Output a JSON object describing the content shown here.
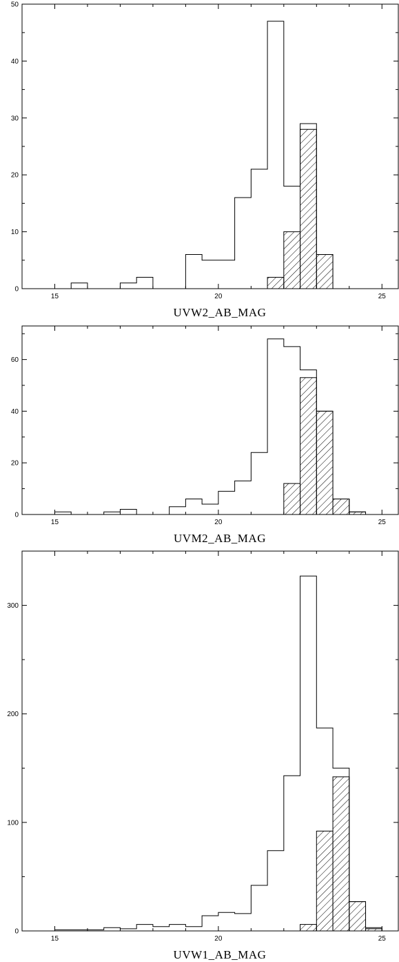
{
  "chart_data": [
    {
      "type": "bar",
      "xlabel": "UVW2_AB_MAG",
      "xlim": [
        14,
        25.5
      ],
      "ylim": [
        0,
        50
      ],
      "x_ticks": [
        15,
        20,
        25
      ],
      "x_tick_labels": [
        "15",
        "20",
        "25"
      ],
      "y_ticks": [
        0,
        10,
        20,
        30,
        40,
        50
      ],
      "y_tick_labels": [
        "0",
        "10",
        "20",
        "30",
        "40",
        "50"
      ],
      "bin_width": 0.5,
      "series": [
        {
          "style": "outline",
          "bins": [
            {
              "x": 15.5,
              "value": 1
            },
            {
              "x": 16,
              "value": 0
            },
            {
              "x": 16.5,
              "value": 0
            },
            {
              "x": 17,
              "value": 1
            },
            {
              "x": 17.5,
              "value": 2
            },
            {
              "x": 18,
              "value": 0
            },
            {
              "x": 18.5,
              "value": 0
            },
            {
              "x": 19,
              "value": 6
            },
            {
              "x": 19.5,
              "value": 5
            },
            {
              "x": 20,
              "value": 5
            },
            {
              "x": 20.5,
              "value": 16
            },
            {
              "x": 21,
              "value": 21
            },
            {
              "x": 21.5,
              "value": 47
            },
            {
              "x": 22,
              "value": 18
            },
            {
              "x": 22.5,
              "value": 29
            },
            {
              "x": 23,
              "value": 6
            }
          ]
        },
        {
          "style": "hatched",
          "bins": [
            {
              "x": 21.5,
              "value": 2
            },
            {
              "x": 22,
              "value": 10
            },
            {
              "x": 22.5,
              "value": 28
            },
            {
              "x": 23,
              "value": 6
            }
          ]
        }
      ]
    },
    {
      "type": "bar",
      "xlabel": "UVM2_AB_MAG",
      "xlim": [
        14,
        25.5
      ],
      "ylim": [
        0,
        73
      ],
      "x_ticks": [
        15,
        20,
        25
      ],
      "x_tick_labels": [
        "15",
        "20",
        "25"
      ],
      "y_ticks": [
        0,
        20,
        40,
        60
      ],
      "y_tick_labels": [
        "0",
        "20",
        "40",
        "60"
      ],
      "bin_width": 0.5,
      "series": [
        {
          "style": "outline",
          "bins": [
            {
              "x": 15,
              "value": 1
            },
            {
              "x": 15.5,
              "value": 0
            },
            {
              "x": 16,
              "value": 0
            },
            {
              "x": 16.5,
              "value": 1
            },
            {
              "x": 17,
              "value": 2
            },
            {
              "x": 17.5,
              "value": 0
            },
            {
              "x": 18,
              "value": 0
            },
            {
              "x": 18.5,
              "value": 3
            },
            {
              "x": 19,
              "value": 6
            },
            {
              "x": 19.5,
              "value": 4
            },
            {
              "x": 20,
              "value": 9
            },
            {
              "x": 20.5,
              "value": 13
            },
            {
              "x": 21,
              "value": 24
            },
            {
              "x": 21.5,
              "value": 68
            },
            {
              "x": 22,
              "value": 65
            },
            {
              "x": 22.5,
              "value": 56
            },
            {
              "x": 23,
              "value": 40
            },
            {
              "x": 23.5,
              "value": 6
            },
            {
              "x": 24,
              "value": 1
            }
          ]
        },
        {
          "style": "hatched",
          "bins": [
            {
              "x": 22,
              "value": 12
            },
            {
              "x": 22.5,
              "value": 53
            },
            {
              "x": 23,
              "value": 40
            },
            {
              "x": 23.5,
              "value": 6
            },
            {
              "x": 24,
              "value": 1
            }
          ]
        }
      ]
    },
    {
      "type": "bar",
      "xlabel": "UVW1_AB_MAG",
      "xlim": [
        14,
        25.5
      ],
      "ylim": [
        0,
        350
      ],
      "x_ticks": [
        15,
        20,
        25
      ],
      "x_tick_labels": [
        "15",
        "20",
        "25"
      ],
      "y_ticks": [
        0,
        100,
        200,
        300
      ],
      "y_tick_labels": [
        "0",
        "100",
        "200",
        "300"
      ],
      "bin_width": 0.5,
      "series": [
        {
          "style": "outline",
          "bins": [
            {
              "x": 15,
              "value": 1
            },
            {
              "x": 15.5,
              "value": 1
            },
            {
              "x": 16,
              "value": 1
            },
            {
              "x": 16.5,
              "value": 3
            },
            {
              "x": 17,
              "value": 2
            },
            {
              "x": 17.5,
              "value": 6
            },
            {
              "x": 18,
              "value": 4
            },
            {
              "x": 18.5,
              "value": 6
            },
            {
              "x": 19,
              "value": 4
            },
            {
              "x": 19.5,
              "value": 14
            },
            {
              "x": 20,
              "value": 17
            },
            {
              "x": 20.5,
              "value": 16
            },
            {
              "x": 21,
              "value": 42
            },
            {
              "x": 21.5,
              "value": 74
            },
            {
              "x": 22,
              "value": 143
            },
            {
              "x": 22.5,
              "value": 327
            },
            {
              "x": 23,
              "value": 187
            },
            {
              "x": 23.5,
              "value": 150
            },
            {
              "x": 24,
              "value": 27
            },
            {
              "x": 24.5,
              "value": 3
            }
          ]
        },
        {
          "style": "hatched",
          "bins": [
            {
              "x": 22.5,
              "value": 6
            },
            {
              "x": 23,
              "value": 92
            },
            {
              "x": 23.5,
              "value": 142
            },
            {
              "x": 24,
              "value": 27
            },
            {
              "x": 24.5,
              "value": 2
            }
          ]
        }
      ]
    }
  ]
}
